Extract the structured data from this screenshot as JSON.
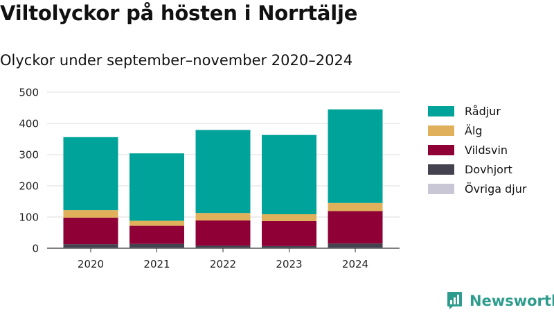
{
  "title": "Viltolyckor på hösten i Norrtälje",
  "subtitle": "Olyckor under september–november 2020–2024",
  "brand": {
    "name": "Newsworthy"
  },
  "chart_data": {
    "type": "bar",
    "stacked": true,
    "categories": [
      "2020",
      "2021",
      "2022",
      "2023",
      "2024"
    ],
    "ylim": [
      0,
      500
    ],
    "yticks": [
      0,
      100,
      200,
      300,
      400,
      500
    ],
    "grid": true,
    "legend_position": "right",
    "series": [
      {
        "name": "Övriga djur",
        "color": "#c9c6d6",
        "values": [
          2,
          2,
          2,
          2,
          2
        ]
      },
      {
        "name": "Dovhjort",
        "color": "#45424f",
        "values": [
          11,
          12,
          6,
          5,
          13
        ]
      },
      {
        "name": "Vildsvin",
        "color": "#8f0036",
        "values": [
          85,
          58,
          81,
          80,
          104
        ]
      },
      {
        "name": "Älg",
        "color": "#e0b05b",
        "values": [
          24,
          16,
          24,
          22,
          26
        ]
      },
      {
        "name": "Rådjur",
        "color": "#00a399",
        "values": [
          234,
          216,
          266,
          254,
          300
        ]
      }
    ]
  }
}
